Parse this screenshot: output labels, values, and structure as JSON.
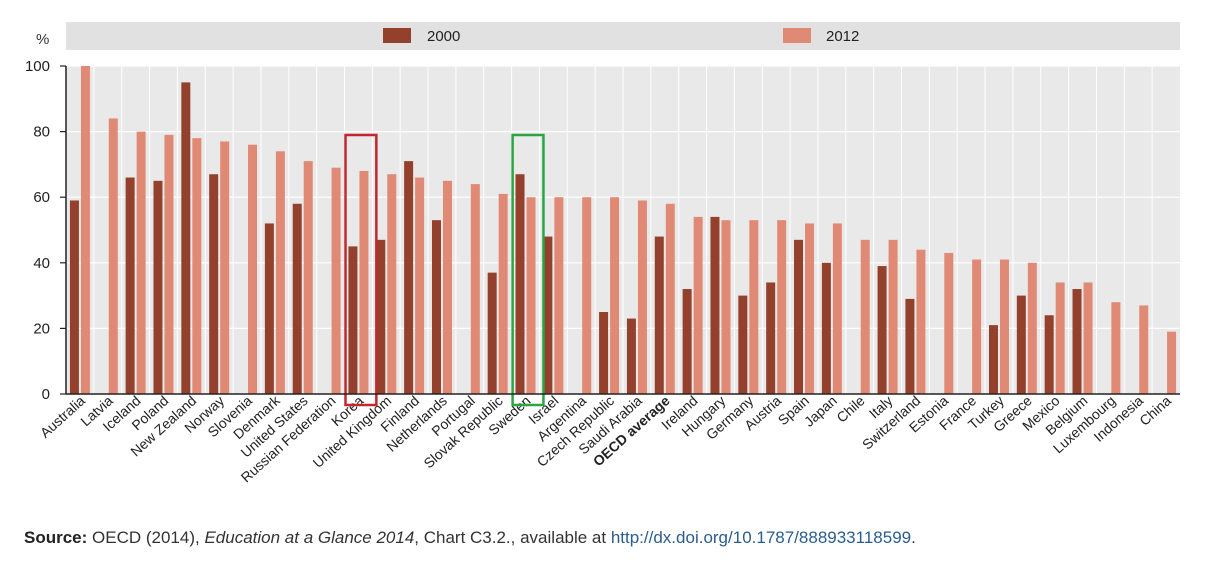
{
  "colors": {
    "series_2000": "#93402d",
    "series_2012": "#e08a75",
    "plot_background": "#e9e9e9",
    "legend_band": "#e1e1e1",
    "highlight_korea": "#c0282e",
    "highlight_sweden": "#2aa544"
  },
  "chart_data": {
    "type": "bar",
    "ylabel": "%",
    "ylim": [
      0,
      100
    ],
    "yticks": [
      0,
      20,
      40,
      60,
      80,
      100
    ],
    "grid": true,
    "legend_position": "top",
    "categories": [
      "Australia",
      "Latvia",
      "Iceland",
      "Poland",
      "New Zealand",
      "Norway",
      "Slovenia",
      "Denmark",
      "United States",
      "Russian Federation",
      "Korea",
      "United Kingdom",
      "Finland",
      "Netherlands",
      "Portugal",
      "Slovak Republic",
      "Sweden",
      "Israel",
      "Argentina",
      "Czech Republic",
      "Saudi Arabia",
      "OECD average",
      "Ireland",
      "Hungary",
      "Germany",
      "Austria",
      "Spain",
      "Japan",
      "Chile",
      "Italy",
      "Switzerland",
      "Estonia",
      "France",
      "Turkey",
      "Greece",
      "Mexico",
      "Belgium",
      "Luxembourg",
      "Indonesia",
      "China"
    ],
    "emphasized_categories": [
      "OECD average"
    ],
    "series": [
      {
        "name": "2000",
        "values": [
          59,
          null,
          66,
          65,
          95,
          67,
          null,
          52,
          58,
          null,
          45,
          47,
          71,
          53,
          null,
          37,
          67,
          48,
          null,
          25,
          23,
          48,
          32,
          54,
          30,
          34,
          47,
          40,
          null,
          39,
          29,
          null,
          null,
          21,
          30,
          24,
          32,
          null,
          null,
          null
        ]
      },
      {
        "name": "2012",
        "values": [
          100,
          84,
          80,
          79,
          78,
          77,
          76,
          74,
          71,
          69,
          68,
          67,
          66,
          65,
          64,
          61,
          60,
          60,
          60,
          60,
          59,
          58,
          54,
          53,
          53,
          53,
          52,
          52,
          47,
          47,
          44,
          43,
          41,
          41,
          40,
          34,
          34,
          28,
          27,
          19
        ]
      }
    ],
    "highlighted": [
      {
        "category": "Korea",
        "color": "red"
      },
      {
        "category": "Sweden",
        "color": "green"
      }
    ]
  },
  "source": {
    "label": "Source:",
    "prefix": " OECD (2014), ",
    "publication": "Education at a Glance 2014",
    "middle": ", Chart C3.2., available at ",
    "url": "http://dx.doi.org/10.1787/888933118599",
    "suffix": "."
  }
}
